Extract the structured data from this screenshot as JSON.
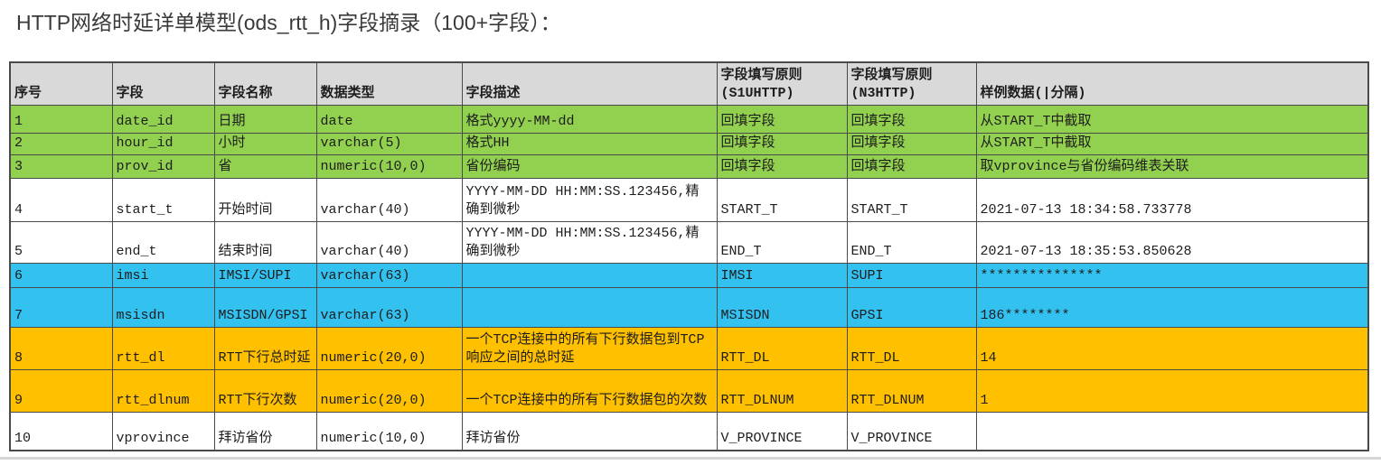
{
  "page": {
    "title": "HTTP网络时延详单模型(ods_rtt_h)字段摘录（100+字段）："
  },
  "colors": {
    "band_green": "#92d050",
    "band_cyan": "#33c1f0",
    "band_orange": "#ffc000",
    "header_bg": "#d9d9d9"
  },
  "table": {
    "headers": [
      "序号",
      "字段",
      "字段名称",
      "数据类型",
      "字段描述",
      "字段填写原则(S1UHTTP)",
      "字段填写原则(N3HTTP)",
      "样例数据(|分隔)"
    ],
    "rows": [
      {
        "band": "green",
        "cells": [
          "1",
          "date_id",
          "日期",
          "date",
          "格式yyyy-MM-dd",
          "回填字段",
          "回填字段",
          "从START_T中截取"
        ]
      },
      {
        "band": "green",
        "cells": [
          "2",
          "hour_id",
          "小时",
          "varchar(5)",
          "格式HH",
          "回填字段",
          "回填字段",
          "从START_T中截取"
        ]
      },
      {
        "band": "green",
        "cells": [
          "3",
          "prov_id",
          "省",
          "numeric(10,0)",
          "省份编码",
          "回填字段",
          "回填字段",
          "取vprovince与省份编码维表关联"
        ]
      },
      {
        "band": "white",
        "cells": [
          "4",
          "start_t",
          "开始时间",
          "varchar(40)",
          "YYYY-MM-DD HH:MM:SS.123456,精确到微秒",
          "START_T",
          "START_T",
          "2021-07-13 18:34:58.733778"
        ]
      },
      {
        "band": "white",
        "cells": [
          "5",
          "end_t",
          "结束时间",
          "varchar(40)",
          "YYYY-MM-DD HH:MM:SS.123456,精确到微秒",
          "END_T",
          "END_T",
          "2021-07-13 18:35:53.850628"
        ]
      },
      {
        "band": "cyan",
        "cells": [
          "6",
          "imsi",
          "IMSI/SUPI",
          "varchar(63)",
          "",
          "IMSI",
          "SUPI",
          "***************"
        ]
      },
      {
        "band": "cyan",
        "cells": [
          "7",
          "msisdn",
          "MSISDN/GPSI",
          "varchar(63)",
          "",
          "MSISDN",
          "GPSI",
          "186********"
        ]
      },
      {
        "band": "orange",
        "cells": [
          "8",
          "rtt_dl",
          "RTT下行总时延",
          "numeric(20,0)",
          "一个TCP连接中的所有下行数据包到TCP响应之间的总时延",
          "RTT_DL",
          "RTT_DL",
          "14"
        ]
      },
      {
        "band": "orange",
        "cells": [
          "9",
          "rtt_dlnum",
          "RTT下行次数",
          "numeric(20,0)",
          "一个TCP连接中的所有下行数据包的次数",
          "RTT_DLNUM",
          "RTT_DLNUM",
          "1"
        ]
      },
      {
        "band": "white",
        "cells": [
          "10",
          "vprovince",
          "拜访省份",
          "numeric(10,0)",
          "拜访省份",
          "V_PROVINCE",
          "V_PROVINCE",
          ""
        ]
      }
    ]
  }
}
